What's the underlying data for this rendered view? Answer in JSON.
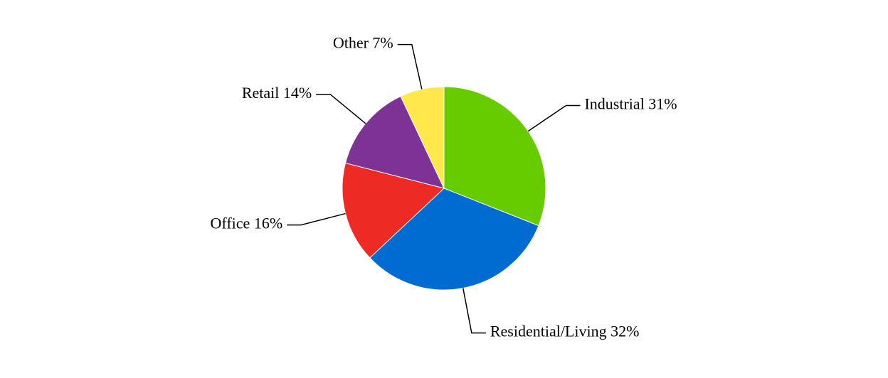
{
  "chart_data": {
    "type": "pie",
    "values": [
      31,
      32,
      16,
      14,
      7
    ],
    "value_labels": [
      "Industrial 31%",
      "Residential/Living 32%",
      "Office 16%",
      "Retail 14%",
      "Other 7%"
    ],
    "colors": [
      "#66cc00",
      "#006cd1",
      "#ee2a24",
      "#7f3296",
      "#ffe74c"
    ]
  }
}
